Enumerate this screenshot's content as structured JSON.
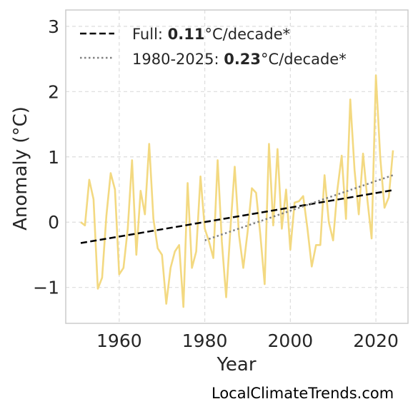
{
  "chart_data": {
    "type": "line",
    "xlabel": "Year",
    "ylabel": "Anomaly (°C)",
    "xlim": [
      1947.5,
      2027.5
    ],
    "ylim": [
      -1.55,
      3.25
    ],
    "xticks": [
      1960,
      1980,
      2000,
      2020
    ],
    "yticks": [
      -1,
      0,
      1,
      2,
      3
    ],
    "ytick_labels": [
      "−1",
      "0",
      "1",
      "2",
      "3"
    ],
    "grid": true,
    "legend_position": "top-left",
    "series": [
      {
        "type": "line",
        "color": "#f2d77a",
        "x": [
          1951,
          1952,
          1953,
          1954,
          1955,
          1956,
          1957,
          1958,
          1959,
          1960,
          1961,
          1962,
          1963,
          1964,
          1965,
          1966,
          1967,
          1968,
          1969,
          1970,
          1971,
          1972,
          1973,
          1974,
          1975,
          1976,
          1977,
          1978,
          1979,
          1980,
          1981,
          1982,
          1983,
          1984,
          1985,
          1986,
          1987,
          1988,
          1989,
          1990,
          1991,
          1992,
          1993,
          1994,
          1995,
          1996,
          1997,
          1998,
          1999,
          2000,
          2001,
          2002,
          2003,
          2004,
          2005,
          2006,
          2007,
          2008,
          2009,
          2010,
          2011,
          2012,
          2013,
          2014,
          2015,
          2016,
          2017,
          2018,
          2019,
          2020,
          2021,
          2022,
          2023,
          2024
        ],
        "y": [
          0.0,
          -0.05,
          0.65,
          0.35,
          -1.02,
          -0.85,
          0.1,
          0.75,
          0.5,
          -0.8,
          -0.7,
          -0.1,
          0.95,
          -0.5,
          0.48,
          0.12,
          1.2,
          0.05,
          -0.4,
          -0.5,
          -1.25,
          -0.7,
          -0.45,
          -0.35,
          -1.3,
          0.6,
          -0.7,
          -0.45,
          0.7,
          -0.1,
          -0.3,
          -0.55,
          0.95,
          -0.3,
          -1.15,
          -0.1,
          0.85,
          -0.2,
          -0.7,
          -0.15,
          0.52,
          0.45,
          -0.2,
          -0.95,
          1.2,
          -0.05,
          1.12,
          -0.1,
          0.5,
          -0.42,
          0.3,
          0.32,
          0.4,
          -0.1,
          -0.68,
          -0.35,
          -0.35,
          0.72,
          0.0,
          -0.28,
          0.5,
          1.02,
          0.05,
          1.88,
          0.8,
          0.12,
          1.05,
          0.35,
          -0.25,
          2.25,
          1.0,
          0.22,
          0.38,
          1.1
        ]
      },
      {
        "type": "trend",
        "name": "Full",
        "rate": "0.11",
        "color": "#000000",
        "dash": "dashed",
        "x": [
          1951,
          2024
        ],
        "y": [
          -0.32,
          0.49
        ]
      },
      {
        "type": "trend",
        "name": "1980-2025",
        "rate": "0.23",
        "color": "#808080",
        "dash": "dotted",
        "x": [
          1980,
          2024
        ],
        "y": [
          -0.28,
          0.72
        ]
      }
    ],
    "legend": [
      {
        "prefix": "Full: ",
        "value": "0.11",
        "suffix": "°C/decade*"
      },
      {
        "prefix": "1980-2025: ",
        "value": "0.23",
        "suffix": "°C/decade*"
      }
    ]
  },
  "watermark": "LocalClimateTrends.com"
}
